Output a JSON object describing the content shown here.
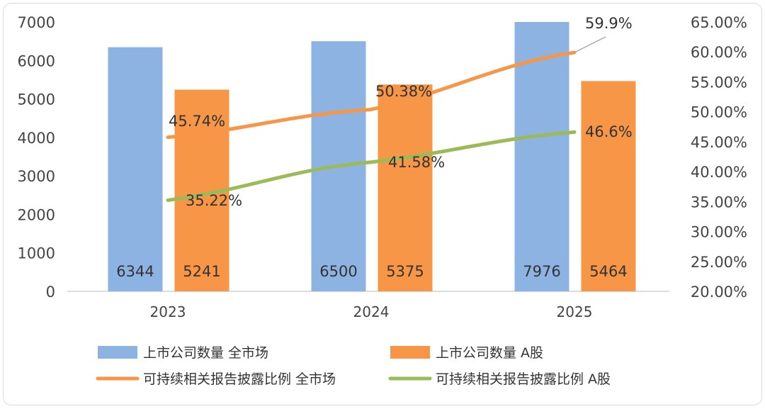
{
  "chart_data": {
    "type": "bar+line",
    "categories": [
      "2023",
      "2024",
      "2025"
    ],
    "bar_series": [
      {
        "name": "上市公司数量 全市场",
        "values": [
          6344,
          6500,
          7976
        ],
        "color": "#8db3e2"
      },
      {
        "name": "上市公司数量 A股",
        "values": [
          5241,
          5375,
          5464
        ],
        "color": "#f79646"
      }
    ],
    "line_series": [
      {
        "name": "可持续相关报告披露比例 全市场",
        "values": [
          45.74,
          50.38,
          59.9
        ],
        "labels": [
          "45.74%",
          "50.38%",
          "59.9%"
        ],
        "color": "#f79646"
      },
      {
        "name": "可持续相关报告披露比例 A股",
        "values": [
          35.22,
          41.58,
          46.6
        ],
        "labels": [
          "35.22%",
          "41.58%",
          "46.6%"
        ],
        "color": "#9bbb59"
      }
    ],
    "y_left": {
      "min": 0,
      "max": 7000,
      "ticks": [
        "0",
        "1000",
        "2000",
        "3000",
        "4000",
        "5000",
        "6000",
        "7000"
      ]
    },
    "y_right": {
      "min": 20,
      "max": 65,
      "ticks": [
        "20.00%",
        "25.00%",
        "30.00%",
        "35.00%",
        "40.00%",
        "45.00%",
        "50.00%",
        "55.00%",
        "60.00%",
        "65.00%"
      ]
    },
    "grid": false,
    "legend_position": "bottom"
  }
}
